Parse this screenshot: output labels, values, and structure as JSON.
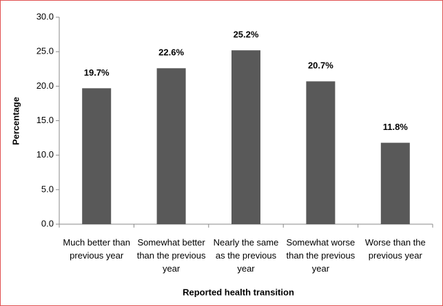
{
  "chart_data": {
    "type": "bar",
    "x_label": "Reported health transition",
    "y_label": "Percentage",
    "categories": [
      "Much better than previous year",
      "Somewhat better than the previous year",
      "Nearly the same as the previous year",
      "Somewhat worse than the previous year",
      "Worse than the previous year"
    ],
    "values": [
      19.7,
      22.6,
      25.2,
      20.7,
      11.8
    ],
    "value_labels": [
      "19.7%",
      "22.6%",
      "25.2%",
      "20.7%",
      "11.8%"
    ],
    "color": "#595959",
    "ylim": [
      0,
      30
    ],
    "yticks": [
      {
        "value": 0,
        "label": "0.0"
      },
      {
        "value": 5,
        "label": "5.0"
      },
      {
        "value": 10,
        "label": "10.0"
      },
      {
        "value": 15,
        "label": "15.0"
      },
      {
        "value": 20,
        "label": "20.0"
      },
      {
        "value": 25,
        "label": "25.0"
      },
      {
        "value": 30,
        "label": "30.0"
      }
    ],
    "grid": false
  }
}
